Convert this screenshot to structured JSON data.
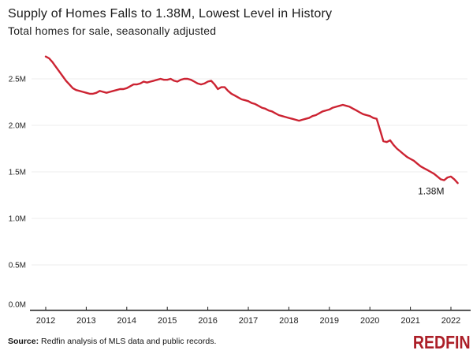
{
  "header": {
    "title": "Supply of Homes Falls to 1.38M, Lowest Level in History",
    "subtitle": "Total homes for sale, seasonally adjusted"
  },
  "footer": {
    "source_label": "Source:",
    "source_text": "Redfin analysis of MLS data and public records.",
    "logo_text": "REDFIN"
  },
  "colors": {
    "line": "#cc2332",
    "logo_red": "#ac1f28",
    "grid": "#ececec",
    "axis": "#222222",
    "tick_text": "#222222",
    "annotation_text": "#1a1a1a"
  },
  "chart_data": {
    "type": "line",
    "title": "Supply of Homes Falls to 1.38M, Lowest Level in History",
    "subtitle": "Total homes for sale, seasonally adjusted",
    "unit": "millions of homes",
    "grid": "horizontal-only",
    "legend": "none",
    "x_range": [
      2012,
      2022.17
    ],
    "ylim": [
      0,
      2.75
    ],
    "x_tick_labels": [
      "2012",
      "2013",
      "2014",
      "2015",
      "2016",
      "2017",
      "2018",
      "2019",
      "2020",
      "2021",
      "2022"
    ],
    "x_tick_values": [
      2012,
      2013,
      2014,
      2015,
      2016,
      2017,
      2018,
      2019,
      2020,
      2021,
      2022
    ],
    "y_tick_labels": [
      "0.0M",
      "0.5M",
      "1.0M",
      "1.5M",
      "2.0M",
      "2.5M"
    ],
    "y_tick_values": [
      0.0,
      0.5,
      1.0,
      1.5,
      2.0,
      2.5
    ],
    "series": [
      {
        "name": "Total homes for sale, seasonally adjusted",
        "start_year": 2012,
        "start_month": 1,
        "frequency": "monthly",
        "values": [
          2.74,
          2.72,
          2.68,
          2.63,
          2.58,
          2.53,
          2.48,
          2.44,
          2.4,
          2.38,
          2.37,
          2.36,
          2.35,
          2.34,
          2.34,
          2.35,
          2.37,
          2.36,
          2.35,
          2.36,
          2.37,
          2.38,
          2.39,
          2.39,
          2.4,
          2.42,
          2.44,
          2.44,
          2.45,
          2.47,
          2.46,
          2.47,
          2.48,
          2.49,
          2.5,
          2.49,
          2.49,
          2.5,
          2.48,
          2.47,
          2.49,
          2.5,
          2.5,
          2.49,
          2.47,
          2.45,
          2.44,
          2.45,
          2.47,
          2.48,
          2.44,
          2.39,
          2.41,
          2.41,
          2.37,
          2.34,
          2.32,
          2.3,
          2.28,
          2.27,
          2.26,
          2.24,
          2.23,
          2.21,
          2.19,
          2.18,
          2.16,
          2.15,
          2.13,
          2.11,
          2.1,
          2.09,
          2.08,
          2.07,
          2.06,
          2.05,
          2.06,
          2.07,
          2.08,
          2.1,
          2.11,
          2.13,
          2.15,
          2.16,
          2.17,
          2.19,
          2.2,
          2.21,
          2.22,
          2.21,
          2.2,
          2.18,
          2.16,
          2.14,
          2.12,
          2.11,
          2.1,
          2.08,
          2.07,
          1.95,
          1.83,
          1.82,
          1.84,
          1.79,
          1.75,
          1.72,
          1.69,
          1.66,
          1.64,
          1.62,
          1.59,
          1.56,
          1.54,
          1.52,
          1.5,
          1.48,
          1.45,
          1.42,
          1.41,
          1.44,
          1.45,
          1.42,
          1.38
        ]
      }
    ],
    "annotation": {
      "text": "1.38M",
      "x": 2021.51,
      "y": 1.26
    }
  }
}
